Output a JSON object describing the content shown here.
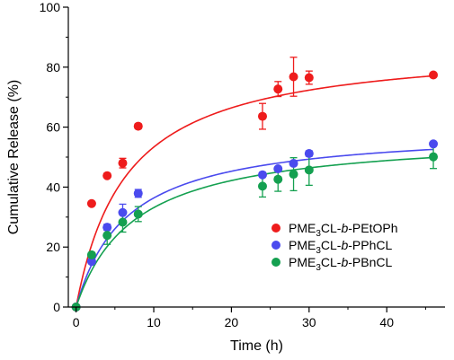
{
  "chart_data": {
    "type": "scatter",
    "xlabel": "Time (h)",
    "ylabel": "Cumulative Release (%)",
    "xlim": [
      -1,
      47.5
    ],
    "ylim": [
      0,
      100
    ],
    "xticks": [
      0,
      10,
      20,
      30,
      40
    ],
    "yticks": [
      0,
      20,
      40,
      60,
      80,
      100
    ],
    "grid": false,
    "legend_position": "bottom-right",
    "series": [
      {
        "color": "#ee1c1c",
        "legend": {
          "pre": "PME",
          "sub": "3",
          "mid": "CL-",
          "ital": "b",
          "post": "-PEtOPh"
        },
        "x": [
          0,
          2,
          4,
          6,
          8,
          24,
          26,
          28,
          30,
          46
        ],
        "y": [
          0,
          34.5,
          43.8,
          48.0,
          60.3,
          63.6,
          72.7,
          76.8,
          76.5,
          77.4
        ],
        "err": [
          0,
          0.6,
          0.5,
          1.6,
          0.8,
          4.3,
          2.5,
          6.5,
          2.2,
          0.7
        ],
        "fit": {
          "vmax": 88,
          "k": 6.5
        }
      },
      {
        "color": "#4a4aee",
        "legend": {
          "pre": "PME",
          "sub": "3",
          "mid": "CL-",
          "ital": "b",
          "post": "-PPhCL"
        },
        "x": [
          0,
          2,
          4,
          6,
          8,
          24,
          26,
          28,
          30,
          46
        ],
        "y": [
          0,
          15.2,
          26.6,
          31.5,
          37.9,
          44.1,
          46.1,
          47.9,
          51.2,
          54.4
        ],
        "err": [
          0,
          0.5,
          1.0,
          2.8,
          1.3,
          0.7,
          0.6,
          0.8,
          0.9,
          0.6
        ],
        "fit": {
          "vmax": 60,
          "k": 6.5
        }
      },
      {
        "color": "#14a050",
        "legend": {
          "pre": "PME",
          "sub": "3",
          "mid": "CL-",
          "ital": "b",
          "post": "-PBnCL"
        },
        "x": [
          0,
          2,
          4,
          6,
          8,
          24,
          26,
          28,
          30,
          46
        ],
        "y": [
          0,
          17.4,
          23.9,
          28.3,
          31.0,
          40.3,
          42.6,
          44.3,
          45.7,
          50.1
        ],
        "err": [
          0,
          0.8,
          3.0,
          3.3,
          2.5,
          3.6,
          4.0,
          5.5,
          5.1,
          3.9
        ],
        "fit": {
          "vmax": 58,
          "k": 7.5
        }
      }
    ]
  }
}
